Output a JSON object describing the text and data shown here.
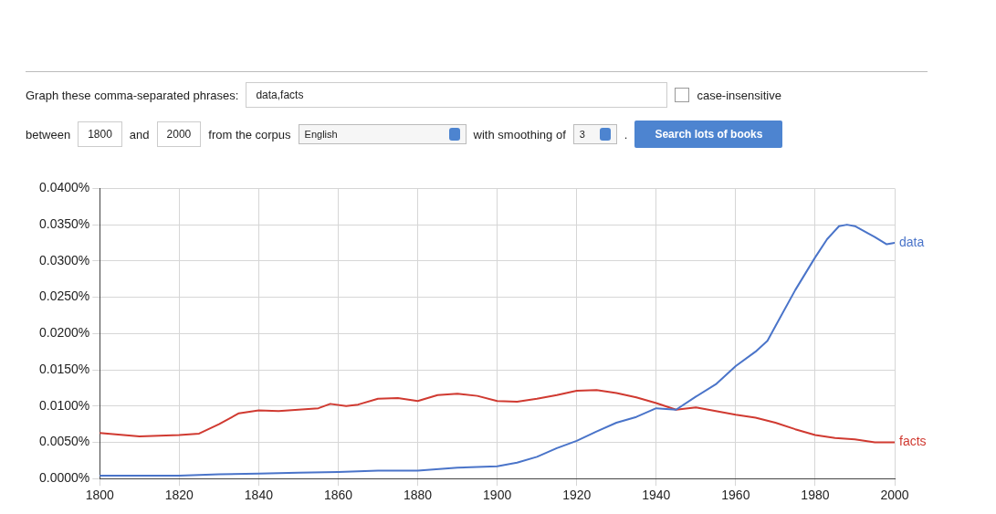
{
  "chart_data": {
    "type": "line",
    "annotations": [
      "Graph these comma-separated phrases:",
      "data,facts",
      "case-insensitive",
      "between",
      "1800",
      "and",
      "2000",
      "from the corpus",
      "English",
      "with smoothing of",
      "3",
      ".",
      "Search lots of books"
    ],
    "xlim": [
      1800,
      2000
    ],
    "xticks": [
      1800,
      1820,
      1840,
      1860,
      1880,
      1900,
      1920,
      1940,
      1960,
      1980,
      2000
    ],
    "ylim": [
      0,
      0.04
    ],
    "yticks": [
      {
        "value": 0,
        "label": "0.0000%"
      },
      {
        "value": 0.005,
        "label": "0.0050%"
      },
      {
        "value": 0.01,
        "label": "0.0100%"
      },
      {
        "value": 0.015,
        "label": "0.0150%"
      },
      {
        "value": 0.02,
        "label": "0.0200%"
      },
      {
        "value": 0.025,
        "label": "0.0250%"
      },
      {
        "value": 0.03,
        "label": "0.0300%"
      },
      {
        "value": 0.035,
        "label": "0.0350%"
      },
      {
        "value": 0.04,
        "label": "0.0400%"
      }
    ],
    "grid": true,
    "legend": false,
    "marker": "none",
    "line_style": "solid",
    "series": [
      {
        "name": "data",
        "color": "#4a74c9",
        "x": [
          1800,
          1820,
          1830,
          1840,
          1850,
          1860,
          1870,
          1880,
          1890,
          1900,
          1905,
          1910,
          1915,
          1920,
          1925,
          1930,
          1935,
          1940,
          1945,
          1950,
          1955,
          1960,
          1965,
          1968,
          1970,
          1975,
          1980,
          1983,
          1986,
          1988,
          1990,
          1995,
          1998,
          2000
        ],
        "values": [
          0.0004,
          0.0004,
          0.0006,
          0.0007,
          0.0008,
          0.0009,
          0.0011,
          0.0011,
          0.0015,
          0.0017,
          0.0022,
          0.003,
          0.0042,
          0.0052,
          0.0065,
          0.0077,
          0.0085,
          0.0097,
          0.0095,
          0.0113,
          0.013,
          0.0155,
          0.0175,
          0.019,
          0.021,
          0.026,
          0.0305,
          0.033,
          0.0348,
          0.035,
          0.0348,
          0.0333,
          0.0323,
          0.0325
        ]
      },
      {
        "name": "facts",
        "color": "#d03a31",
        "x": [
          1800,
          1810,
          1820,
          1825,
          1830,
          1835,
          1840,
          1845,
          1850,
          1855,
          1858,
          1862,
          1865,
          1870,
          1875,
          1880,
          1885,
          1890,
          1895,
          1900,
          1905,
          1910,
          1915,
          1920,
          1925,
          1930,
          1935,
          1940,
          1945,
          1948,
          1950,
          1955,
          1960,
          1965,
          1970,
          1975,
          1980,
          1985,
          1990,
          1995,
          2000
        ],
        "values": [
          0.0063,
          0.0058,
          0.006,
          0.0062,
          0.0075,
          0.009,
          0.0094,
          0.0093,
          0.0095,
          0.0097,
          0.0103,
          0.01,
          0.0102,
          0.011,
          0.0111,
          0.0107,
          0.0115,
          0.0117,
          0.0114,
          0.0107,
          0.0106,
          0.011,
          0.0115,
          0.0121,
          0.0122,
          0.0118,
          0.0112,
          0.0104,
          0.0095,
          0.0097,
          0.0098,
          0.0093,
          0.0088,
          0.0084,
          0.0077,
          0.0068,
          0.006,
          0.0056,
          0.0054,
          0.005,
          0.005
        ]
      }
    ]
  }
}
